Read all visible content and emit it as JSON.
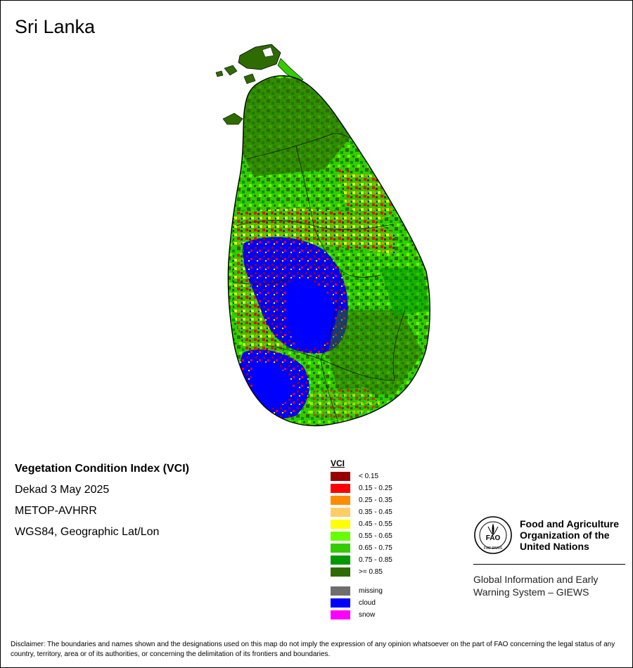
{
  "title": "Sri Lanka",
  "meta": {
    "index_name": "Vegetation Condition Index (VCI)",
    "period": "Dekad 3 May 2025",
    "sensor": "METOP-AVHRR",
    "projection": "WGS84, Geographic Lat/Lon"
  },
  "legend": {
    "title": "VCI",
    "classes": [
      {
        "label": "< 0.15",
        "color": "#990000"
      },
      {
        "label": "0.15 - 0.25",
        "color": "#ff0000"
      },
      {
        "label": "0.25 - 0.35",
        "color": "#ff8c00"
      },
      {
        "label": "0.35 - 0.45",
        "color": "#ffcc66"
      },
      {
        "label": "0.45 - 0.55",
        "color": "#ffff00"
      },
      {
        "label": "0.55 - 0.65",
        "color": "#66ff00"
      },
      {
        "label": "0.65 - 0.75",
        "color": "#33cc00"
      },
      {
        "label": "0.75 - 0.85",
        "color": "#009900"
      },
      {
        "label": ">= 0.85",
        "color": "#2e6b00"
      }
    ],
    "extra": [
      {
        "label": "missing",
        "color": "#6e6e6e"
      },
      {
        "label": "cloud",
        "color": "#0000ff"
      },
      {
        "label": "snow",
        "color": "#ff00ff"
      }
    ]
  },
  "organization": {
    "logo_text": "FAO",
    "logo_motto": "FIAT PANIS",
    "name_lines": [
      "Food and Agriculture",
      "Organization of the",
      "United Nations"
    ],
    "system_lines": [
      "Global Information and Early",
      "Warning System – GIEWS"
    ]
  },
  "disclaimer": "Disclaimer: The boundaries and names shown and the designations used on this map do not imply the expression of any opinion whatsoever on the part of FAO concerning the legal status of any country, territory, area or of its authorities, or concerning the delimitation of its frontiers and boundaries."
}
